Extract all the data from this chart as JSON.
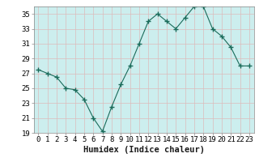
{
  "x": [
    0,
    1,
    2,
    3,
    4,
    5,
    6,
    7,
    8,
    9,
    10,
    11,
    12,
    13,
    14,
    15,
    16,
    17,
    18,
    19,
    20,
    21,
    22,
    23
  ],
  "y": [
    27.5,
    27.0,
    26.5,
    25.0,
    24.8,
    23.5,
    21.0,
    19.2,
    22.5,
    25.5,
    28.0,
    31.0,
    34.0,
    35.0,
    34.0,
    33.0,
    34.5,
    36.0,
    36.0,
    33.0,
    32.0,
    30.5,
    28.0,
    28.0
  ],
  "line_color": "#1a6b5a",
  "marker": "+",
  "marker_size": 5,
  "bg_color": "#cceeee",
  "outer_bg": "#ffffff",
  "grid_color_h": "#ddbbbb",
  "grid_color_v": "#ddbbbb",
  "xlabel": "Humidex (Indice chaleur)",
  "ylim": [
    19,
    36
  ],
  "xlim": [
    -0.5,
    23.5
  ],
  "yticks": [
    19,
    21,
    23,
    25,
    27,
    29,
    31,
    33,
    35
  ],
  "xticks": [
    0,
    1,
    2,
    3,
    4,
    5,
    6,
    7,
    8,
    9,
    10,
    11,
    12,
    13,
    14,
    15,
    16,
    17,
    18,
    19,
    20,
    21,
    22,
    23
  ],
  "xlabel_fontsize": 7.5,
  "tick_fontsize": 6.5
}
